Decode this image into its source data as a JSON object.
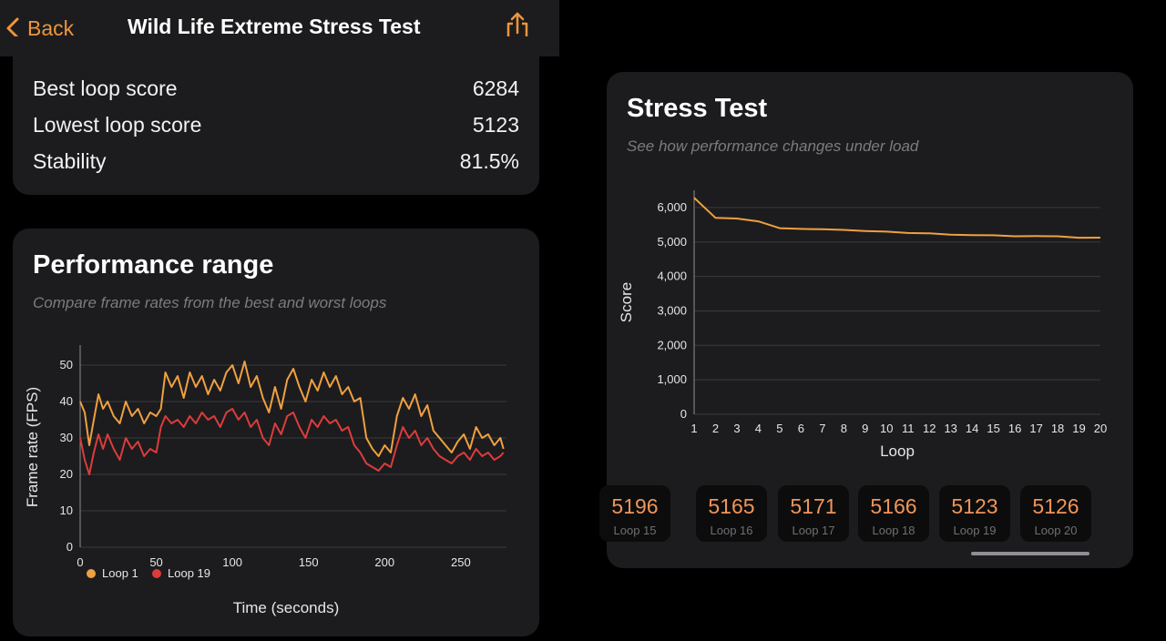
{
  "nav": {
    "back_label": "Back",
    "title": "Wild Life Extreme Stress Test",
    "back_icon": "chevron-left-icon",
    "share_icon": "share-icon",
    "accent": "#f0953a"
  },
  "stats": [
    {
      "label": "Best loop score",
      "value": "6284"
    },
    {
      "label": "Lowest loop score",
      "value": "5123"
    },
    {
      "label": "Stability",
      "value": "81.5%"
    }
  ],
  "performance": {
    "title": "Performance range",
    "subtitle": "Compare frame rates from the best and worst loops"
  },
  "stress": {
    "title": "Stress Test",
    "subtitle": "See how performance changes under load",
    "loops": [
      {
        "score": "5196",
        "label": "Loop 15"
      },
      {
        "score": "5165",
        "label": "Loop 16"
      },
      {
        "score": "5171",
        "label": "Loop 17"
      },
      {
        "score": "5166",
        "label": "Loop 18"
      },
      {
        "score": "5123",
        "label": "Loop 19"
      },
      {
        "score": "5126",
        "label": "Loop 20"
      }
    ]
  },
  "chart_data": [
    {
      "type": "line",
      "title": "Performance range",
      "xlabel": "Time (seconds)",
      "ylabel": "Frame rate (FPS)",
      "xlim": [
        0,
        280
      ],
      "ylim": [
        0,
        55
      ],
      "xticks": [
        0,
        50,
        100,
        150,
        200,
        250
      ],
      "yticks": [
        0,
        10,
        20,
        30,
        40,
        50
      ],
      "grid": true,
      "legend": "bottom-left",
      "series": [
        {
          "name": "Loop 1",
          "color": "#f0a040",
          "x": [
            0,
            3,
            6,
            9,
            12,
            15,
            18,
            22,
            26,
            30,
            34,
            38,
            42,
            46,
            50,
            53,
            56,
            60,
            64,
            68,
            72,
            76,
            80,
            84,
            88,
            92,
            96,
            100,
            104,
            108,
            112,
            116,
            120,
            124,
            128,
            132,
            136,
            140,
            144,
            148,
            152,
            156,
            160,
            164,
            168,
            172,
            176,
            180,
            184,
            188,
            192,
            196,
            200,
            204,
            208,
            212,
            216,
            220,
            224,
            228,
            232,
            236,
            240,
            244,
            248,
            252,
            256,
            260,
            264,
            268,
            272,
            276,
            278
          ],
          "values": [
            40,
            37,
            28,
            35,
            42,
            38,
            40,
            36,
            34,
            40,
            36,
            38,
            34,
            37,
            36,
            38,
            48,
            44,
            47,
            41,
            48,
            44,
            47,
            42,
            46,
            43,
            48,
            50,
            45,
            51,
            44,
            47,
            41,
            37,
            44,
            38,
            46,
            49,
            44,
            40,
            46,
            43,
            48,
            44,
            47,
            42,
            44,
            40,
            41,
            30,
            27,
            25,
            28,
            26,
            36,
            41,
            38,
            42,
            36,
            39,
            32,
            30,
            28,
            26,
            29,
            31,
            27,
            33,
            30,
            31,
            28,
            30,
            27
          ]
        },
        {
          "name": "Loop 19",
          "color": "#dc3c3c",
          "x": [
            0,
            3,
            6,
            9,
            12,
            15,
            18,
            22,
            26,
            30,
            34,
            38,
            42,
            46,
            50,
            53,
            56,
            60,
            64,
            68,
            72,
            76,
            80,
            84,
            88,
            92,
            96,
            100,
            104,
            108,
            112,
            116,
            120,
            124,
            128,
            132,
            136,
            140,
            144,
            148,
            152,
            156,
            160,
            164,
            168,
            172,
            176,
            180,
            184,
            188,
            192,
            196,
            200,
            204,
            208,
            212,
            216,
            220,
            224,
            228,
            232,
            236,
            240,
            244,
            248,
            252,
            256,
            260,
            264,
            268,
            272,
            276,
            278
          ],
          "values": [
            30,
            24,
            20,
            26,
            31,
            27,
            31,
            27,
            24,
            30,
            27,
            29,
            25,
            27,
            26,
            33,
            36,
            34,
            35,
            33,
            36,
            34,
            37,
            35,
            36,
            33,
            37,
            38,
            35,
            37,
            33,
            35,
            30,
            28,
            34,
            31,
            36,
            37,
            33,
            30,
            35,
            33,
            36,
            34,
            35,
            32,
            33,
            28,
            26,
            23,
            22,
            21,
            23,
            22,
            28,
            33,
            30,
            32,
            28,
            30,
            27,
            25,
            24,
            23,
            25,
            26,
            24,
            27,
            25,
            26,
            24,
            25,
            26
          ]
        }
      ]
    },
    {
      "type": "line",
      "title": "Stress Test",
      "xlabel": "Loop",
      "ylabel": "Score",
      "x": [
        1,
        2,
        3,
        4,
        5,
        6,
        7,
        8,
        9,
        10,
        11,
        12,
        13,
        14,
        15,
        16,
        17,
        18,
        19,
        20
      ],
      "ylim": [
        0,
        6500
      ],
      "yticks": [
        0,
        1000,
        2000,
        3000,
        4000,
        5000,
        6000
      ],
      "ytick_labels": [
        "0",
        "1,000",
        "2,000",
        "3,000",
        "4,000",
        "5,000",
        "6,000"
      ],
      "grid": true,
      "series": [
        {
          "color": "#f0a040",
          "values": [
            6284,
            5700,
            5680,
            5600,
            5400,
            5380,
            5370,
            5350,
            5320,
            5300,
            5260,
            5250,
            5210,
            5200,
            5196,
            5165,
            5171,
            5166,
            5123,
            5126
          ]
        }
      ]
    }
  ]
}
